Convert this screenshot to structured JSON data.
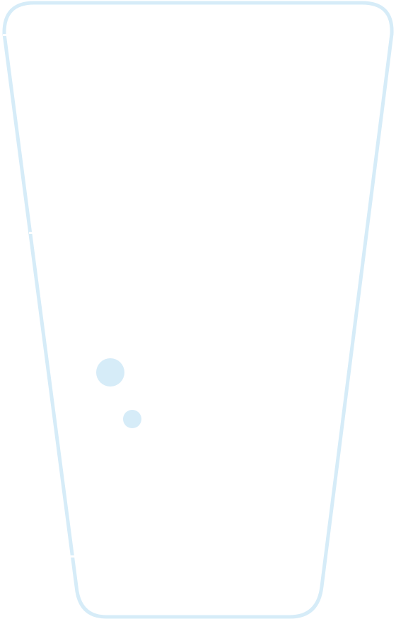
{
  "illustration": {
    "icon": "glass-icon",
    "colors": {
      "outline": "#d6ecf8",
      "bubble": "#d6ecf8",
      "background": "#ffffff"
    }
  }
}
